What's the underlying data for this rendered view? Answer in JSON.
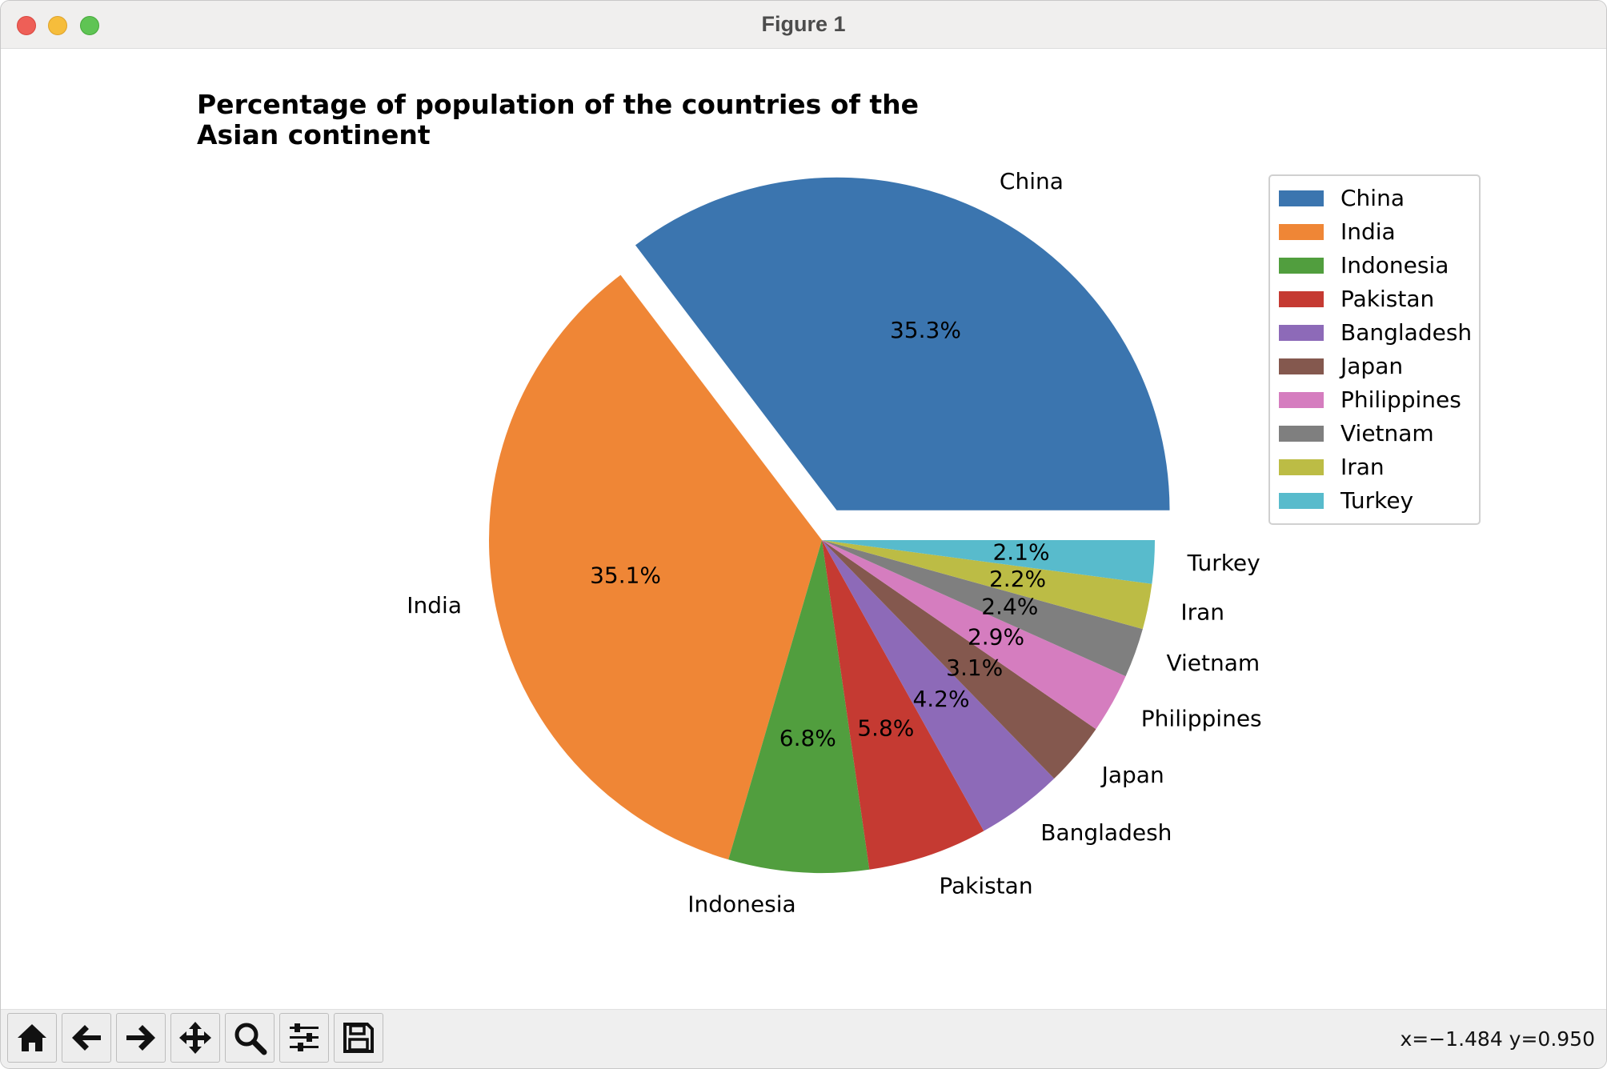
{
  "window": {
    "title": "Figure 1"
  },
  "toolbar": {
    "buttons": [
      {
        "name": "home-icon"
      },
      {
        "name": "back-arrow-icon"
      },
      {
        "name": "forward-arrow-icon"
      },
      {
        "name": "pan-move-icon"
      },
      {
        "name": "zoom-magnifier-icon"
      },
      {
        "name": "configure-subplots-icon"
      },
      {
        "name": "save-floppy-icon"
      }
    ],
    "coordinates": "x=−1.484 y=0.950"
  },
  "chart_data": {
    "type": "pie",
    "title_lines": [
      "Percentage of population of the countries of the",
      "Asian continent"
    ],
    "categories": [
      "China",
      "India",
      "Indonesia",
      "Pakistan",
      "Bangladesh",
      "Japan",
      "Philippines",
      "Vietnam",
      "Iran",
      "Turkey"
    ],
    "values": [
      35.3,
      35.1,
      6.8,
      5.8,
      4.2,
      3.1,
      2.9,
      2.4,
      2.2,
      2.1
    ],
    "value_labels": [
      "35.3%",
      "35.1%",
      "6.8%",
      "5.8%",
      "4.2%",
      "3.1%",
      "2.9%",
      "2.4%",
      "2.2%",
      "2.1%"
    ],
    "colors": [
      "#3b75af",
      "#ef8636",
      "#519e3e",
      "#c53a32",
      "#8d6ab8",
      "#84584e",
      "#d57dbf",
      "#7f7f7f",
      "#bcbc45",
      "#58bbcc"
    ],
    "explode": [
      0.1,
      0,
      0,
      0,
      0,
      0,
      0,
      0,
      0,
      0
    ],
    "start_angle_deg": 0,
    "direction": "counterclockwise",
    "legend": {
      "position": "upper-right",
      "entries": [
        "China",
        "India",
        "Indonesia",
        "Pakistan",
        "Bangladesh",
        "Japan",
        "Philippines",
        "Vietnam",
        "Iran",
        "Turkey"
      ]
    }
  }
}
